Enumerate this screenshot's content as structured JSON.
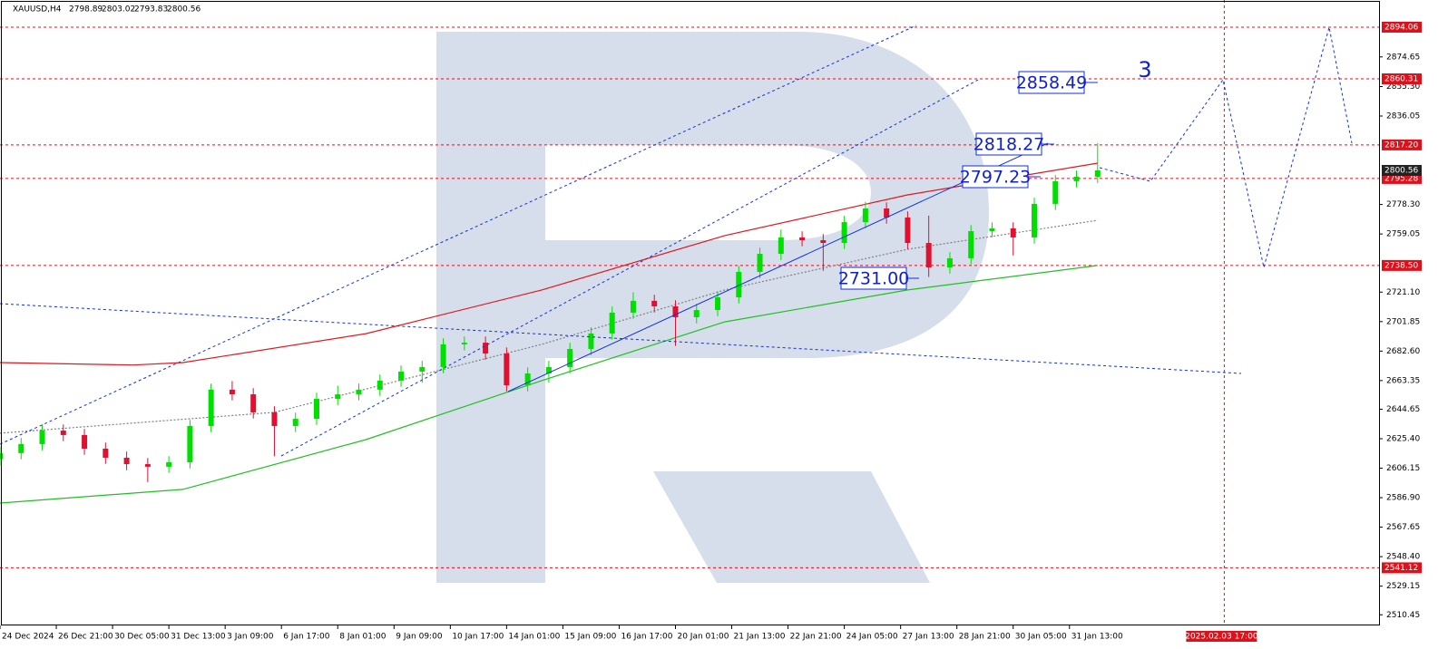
{
  "chart_data": {
    "type": "candlestick",
    "title": "XAUUSD,H4",
    "ohlc": [
      2798.89,
      2803.02,
      2793.83,
      2800.56
    ],
    "xlim": [
      0,
      196
    ],
    "ylim": [
      2503.5,
      2911.8
    ],
    "yticks": [
      2874.65,
      {
        "value": 2855.3,
        "label": "2855.30"
      },
      2836.05,
      {
        "value": 2778.3,
        "label": "2778.30"
      },
      2759.05,
      {
        "value": 2721.1,
        "label": "2721.10"
      },
      2701.85,
      {
        "value": 2682.6,
        "label": "2682.60"
      },
      2663.35,
      2644.65,
      {
        "value": 2625.4,
        "label": "2625.40"
      },
      2606.15,
      {
        "value": 2586.9,
        "label": "2586.90"
      },
      2567.65,
      {
        "value": 2548.4,
        "label": "2548.40"
      },
      2529.15,
      2510.45
    ],
    "xticks": [
      {
        "value": 0,
        "label": "24 Dec 2024"
      },
      {
        "value": 8,
        "label": "26 Dec 21:00"
      },
      {
        "value": 16,
        "label": "30 Dec 05:00"
      },
      {
        "value": 24,
        "label": "31 Dec 13:00"
      },
      {
        "value": 32,
        "label": "3 Jan 09:00"
      },
      {
        "value": 40,
        "label": "6 Jan 17:00"
      },
      {
        "value": 48,
        "label": "8 Jan 01:00"
      },
      {
        "value": 56,
        "label": "9 Jan 09:00"
      },
      {
        "value": 64,
        "label": "10 Jan 17:00"
      },
      {
        "value": 72,
        "label": "14 Jan 01:00"
      },
      {
        "value": 80,
        "label": "15 Jan 09:00"
      },
      {
        "value": 88,
        "label": "16 Jan 17:00"
      },
      {
        "value": 96,
        "label": "20 Jan 01:00"
      },
      {
        "value": 104,
        "label": "21 Jan 13:00"
      },
      {
        "value": 112,
        "label": "22 Jan 21:00"
      },
      {
        "value": 120,
        "label": "24 Jan 05:00"
      },
      {
        "value": 128,
        "label": "27 Jan 13:00"
      },
      {
        "value": 136,
        "label": "28 Jan 21:00"
      },
      {
        "value": 144,
        "label": "30 Jan 05:00"
      },
      {
        "value": 152,
        "label": "31 Jan 13:00"
      }
    ],
    "vline": {
      "value": 174,
      "label": "2025.02.03 17:00",
      "color": "#e0101a"
    },
    "levels": [
      2894.06,
      2860.31,
      {
        "value": 2817.2,
        "label": "2817.20"
      },
      2795.28,
      {
        "value": 2738.5,
        "label": "2738.50"
      },
      2541.12
    ],
    "level_color": "#e0101a",
    "current_price": 2800.56,
    "up_color": "#00e000",
    "down_color": "#e01030",
    "candles": {
      "x": [
        0,
        3,
        6,
        9,
        12,
        15,
        18,
        21,
        24,
        27,
        30,
        33,
        36,
        39,
        42,
        45,
        48,
        51,
        54,
        57,
        60,
        63,
        66,
        69,
        72,
        75,
        78,
        81,
        84,
        87,
        90,
        93,
        96,
        99,
        102,
        105,
        108,
        111,
        114,
        117,
        120,
        123,
        126,
        129,
        132,
        135,
        138,
        141,
        144,
        147,
        150,
        153,
        156
      ],
      "open": [
        2612.0,
        2616.0,
        2621.9,
        2630.7,
        2627.8,
        2618.9,
        2613.0,
        2608.8,
        2607.1,
        2610.0,
        2633.7,
        2657.4,
        2654.4,
        2642.6,
        2633.7,
        2638.4,
        2651.4,
        2654.4,
        2657.4,
        2663.3,
        2669.2,
        2672.2,
        2687.0,
        2688.1,
        2681.0,
        2660.3,
        2668.0,
        2672.2,
        2684.0,
        2694.1,
        2707.7,
        2715.4,
        2711.8,
        2704.7,
        2709.4,
        2717.7,
        2734.3,
        2746.1,
        2756.8,
        2755.0,
        2753.2,
        2766.8,
        2775.7,
        2769.8,
        2753.2,
        2737.2,
        2743.2,
        2760.9,
        2762.7,
        2756.8,
        2778.7,
        2793.5,
        2796.4
      ],
      "high": [
        2620.0,
        2625.9,
        2634.7,
        2634.7,
        2631.8,
        2622.9,
        2617.0,
        2612.8,
        2614.0,
        2637.7,
        2661.4,
        2663.0,
        2658.4,
        2646.6,
        2642.4,
        2655.4,
        2660.0,
        2661.4,
        2667.3,
        2673.2,
        2676.2,
        2691.0,
        2692.1,
        2692.1,
        2685.0,
        2672.0,
        2676.2,
        2688.0,
        2698.1,
        2711.7,
        2721.0,
        2719.4,
        2715.8,
        2713.4,
        2721.7,
        2738.3,
        2750.1,
        2762.0,
        2760.8,
        2759.0,
        2770.8,
        2780.0,
        2779.7,
        2773.8,
        2771.0,
        2747.2,
        2764.9,
        2766.7,
        2766.7,
        2782.7,
        2797.5,
        2800.4,
        2818.3
      ],
      "low": [
        2608.0,
        2612.0,
        2617.9,
        2623.8,
        2614.9,
        2609.0,
        2604.8,
        2597.1,
        2603.1,
        2606.0,
        2629.7,
        2650.4,
        2638.6,
        2614.0,
        2629.7,
        2634.4,
        2647.4,
        2650.4,
        2653.4,
        2659.3,
        2662.0,
        2668.2,
        2683.0,
        2677.0,
        2656.3,
        2656.3,
        2662.0,
        2668.2,
        2680.0,
        2690.1,
        2703.7,
        2707.8,
        2686.0,
        2700.7,
        2705.4,
        2713.7,
        2730.3,
        2742.1,
        2751.0,
        2735.0,
        2749.2,
        2762.8,
        2765.8,
        2749.2,
        2731.0,
        2733.2,
        2739.2,
        2756.9,
        2745.0,
        2752.8,
        2774.7,
        2789.5,
        2792.4
      ],
      "close": [
        2616.0,
        2621.9,
        2630.7,
        2627.8,
        2618.9,
        2613.0,
        2608.8,
        2607.1,
        2610.0,
        2633.7,
        2657.4,
        2654.4,
        2642.6,
        2633.7,
        2638.4,
        2651.4,
        2654.4,
        2657.4,
        2663.3,
        2669.2,
        2672.2,
        2687.0,
        2688.1,
        2681.0,
        2660.3,
        2668.0,
        2672.2,
        2684.0,
        2694.1,
        2707.7,
        2715.4,
        2711.8,
        2704.7,
        2709.4,
        2717.7,
        2734.3,
        2746.1,
        2756.8,
        2755.0,
        2753.2,
        2766.8,
        2775.7,
        2769.8,
        2753.2,
        2737.2,
        2743.2,
        2760.9,
        2762.7,
        2756.8,
        2778.7,
        2793.5,
        2796.4,
        2800.56
      ]
    },
    "moving_averages": [
      {
        "color": "#e8141c",
        "dash": false,
        "x": [
          0,
          19,
          26,
          52,
          77,
          103,
          129,
          156
        ],
        "values": [
          2675.1,
          2673.5,
          2675.1,
          2694.0,
          2722.5,
          2758.0,
          2784.6,
          2805.3
        ]
      },
      {
        "color": "#20c020",
        "dash": false,
        "x": [
          0,
          26,
          52,
          77,
          103,
          129,
          156
        ],
        "values": [
          2583.4,
          2592.3,
          2624.8,
          2663.3,
          2701.7,
          2722.5,
          2738.5
        ]
      },
      {
        "color": "#808080",
        "dash": true,
        "x": [
          0,
          39,
          77,
          103,
          129,
          156
        ],
        "values": [
          2629.0,
          2642.6,
          2687.0,
          2722.5,
          2749.1,
          2768.0
        ]
      }
    ],
    "annotations": [
      "2858.49",
      "2818.27",
      "2797.23",
      "2731.00",
      "3"
    ]
  }
}
